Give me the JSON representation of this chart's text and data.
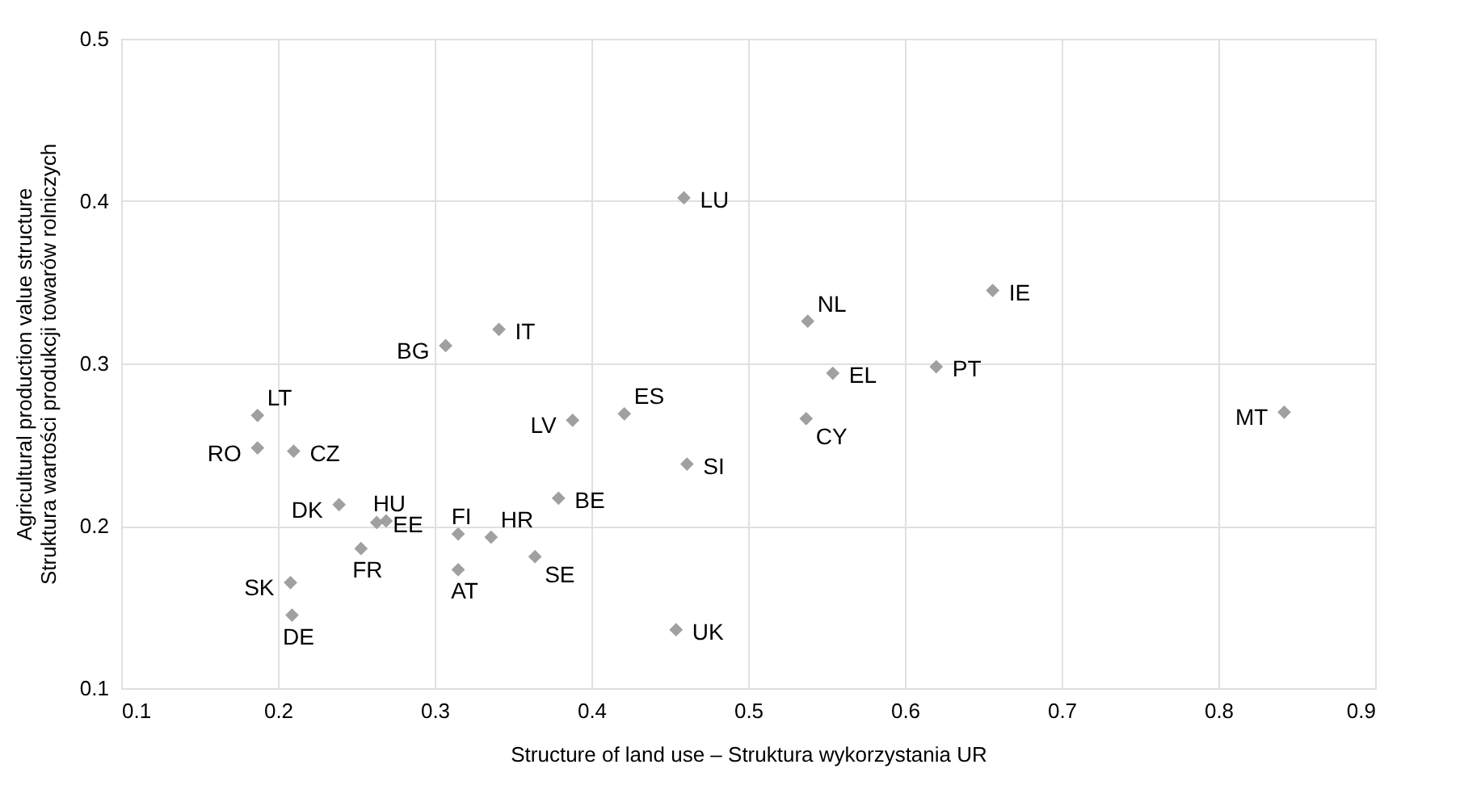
{
  "chart_data": {
    "type": "scatter",
    "xlabel": "Structure of land use – Struktura wykorzystania UR",
    "ylabel": "Agricultural production value structure\nStruktura wartości produkcji towarów rolniczych",
    "x": [
      0.307,
      0.341,
      0.187,
      0.187,
      0.21,
      0.239,
      0.269,
      0.263,
      0.253,
      0.208,
      0.209,
      0.315,
      0.315,
      0.336,
      0.364,
      0.388,
      0.379,
      0.459,
      0.538,
      0.554,
      0.62,
      0.421,
      0.537,
      0.461,
      0.454,
      0.656,
      0.842
    ],
    "series": [
      {
        "color": "#a0a0a0",
        "values": [
          0.311,
          0.321,
          0.268,
          0.248,
          0.246,
          0.213,
          0.203,
          0.202,
          0.186,
          0.165,
          0.145,
          0.195,
          0.173,
          0.193,
          0.181,
          0.265,
          0.217,
          0.402,
          0.326,
          0.294,
          0.298,
          0.269,
          0.266,
          0.238,
          0.136,
          0.345,
          0.27
        ]
      }
    ],
    "marker": "diamond",
    "grid": true,
    "xlim": [
      0.1,
      0.9
    ],
    "xticks": [
      0.1,
      0.2,
      0.3,
      0.4,
      0.5,
      0.6,
      0.7,
      0.8,
      0.9
    ],
    "ylim": [
      0.1,
      0.5
    ],
    "yticks": [
      0.1,
      0.2,
      0.3,
      0.4,
      0.5
    ],
    "annotations": [
      {
        "text": "BG",
        "x": 0.307,
        "y": 0.311
      },
      {
        "text": "IT",
        "x": 0.341,
        "y": 0.321
      },
      {
        "text": "LT",
        "x": 0.187,
        "y": 0.268
      },
      {
        "text": "RO",
        "x": 0.187,
        "y": 0.248
      },
      {
        "text": "CZ",
        "x": 0.21,
        "y": 0.246
      },
      {
        "text": "DK",
        "x": 0.239,
        "y": 0.213
      },
      {
        "text": "HU",
        "x": 0.269,
        "y": 0.203
      },
      {
        "text": "EE",
        "x": 0.263,
        "y": 0.202
      },
      {
        "text": "FR",
        "x": 0.253,
        "y": 0.186
      },
      {
        "text": "SK",
        "x": 0.208,
        "y": 0.165
      },
      {
        "text": "DE",
        "x": 0.209,
        "y": 0.145
      },
      {
        "text": "FI",
        "x": 0.315,
        "y": 0.195
      },
      {
        "text": "AT",
        "x": 0.315,
        "y": 0.173
      },
      {
        "text": "HR",
        "x": 0.336,
        "y": 0.193
      },
      {
        "text": "SE",
        "x": 0.364,
        "y": 0.181
      },
      {
        "text": "LV",
        "x": 0.388,
        "y": 0.265
      },
      {
        "text": "BE",
        "x": 0.379,
        "y": 0.217
      },
      {
        "text": "LU",
        "x": 0.459,
        "y": 0.402
      },
      {
        "text": "NL",
        "x": 0.538,
        "y": 0.326
      },
      {
        "text": "EL",
        "x": 0.554,
        "y": 0.294
      },
      {
        "text": "PT",
        "x": 0.62,
        "y": 0.298
      },
      {
        "text": "ES",
        "x": 0.421,
        "y": 0.269
      },
      {
        "text": "CY",
        "x": 0.537,
        "y": 0.266
      },
      {
        "text": "SI",
        "x": 0.461,
        "y": 0.238
      },
      {
        "text": "UK",
        "x": 0.454,
        "y": 0.136
      },
      {
        "text": "IE",
        "x": 0.656,
        "y": 0.345
      },
      {
        "text": "MT",
        "x": 0.842,
        "y": 0.27
      }
    ]
  }
}
